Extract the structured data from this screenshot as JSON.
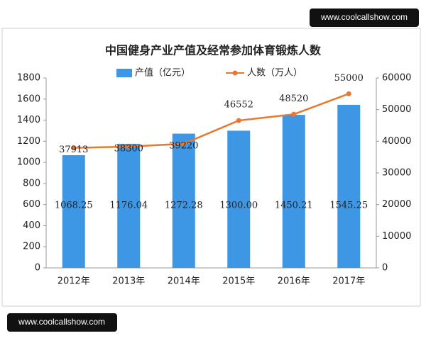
{
  "watermarks": [
    "www.coolcallshow.com",
    "www.coolcallshow.com"
  ],
  "chart_data": {
    "type": "combo",
    "title": "中国健身产业产值及经常参加体育锻炼人数",
    "categories": [
      "2012年",
      "2013年",
      "2014年",
      "2015年",
      "2016年",
      "2017年"
    ],
    "series": [
      {
        "name": "产值（亿元）",
        "type": "bar",
        "color": "#3d97e4",
        "values": [
          1068.25,
          1176.04,
          1272.28,
          1300.0,
          1450.21,
          1545.25
        ],
        "value_labels": [
          "1068.25",
          "1176.04",
          "1272.28",
          "1300.00",
          "1450.21",
          "1545.25"
        ]
      },
      {
        "name": "人数（万人）",
        "type": "line",
        "axis": "y2",
        "color": "#e8782f",
        "values": [
          37913,
          38300,
          39220,
          46552,
          48520,
          55000
        ]
      }
    ],
    "ylim": [
      0,
      1800
    ],
    "yticks": [
      0,
      200,
      400,
      600,
      800,
      1000,
      1200,
      1400,
      1600,
      1800
    ],
    "y2lim": [
      0,
      60000
    ],
    "y2ticks": [
      0,
      10000,
      20000,
      30000,
      40000,
      50000,
      60000
    ],
    "grid": false,
    "legend": "top"
  }
}
